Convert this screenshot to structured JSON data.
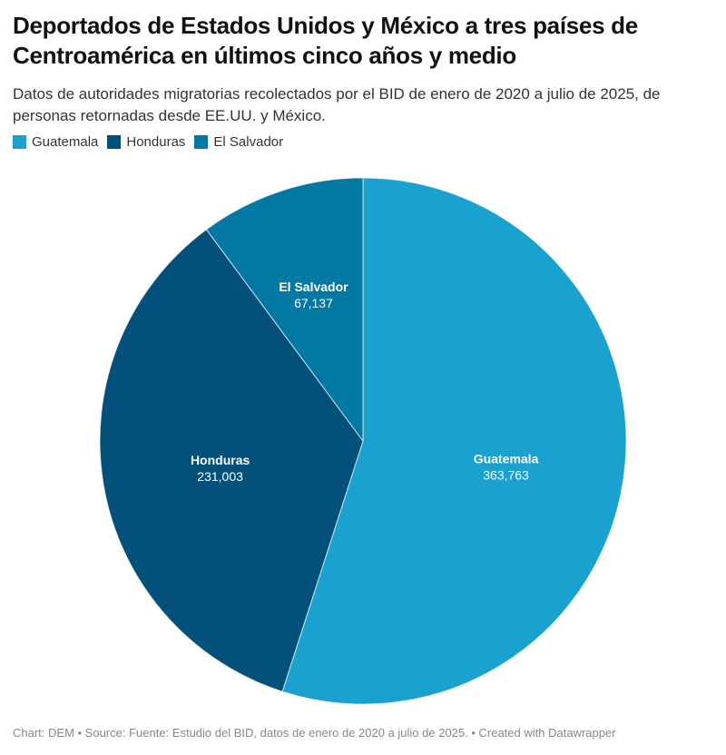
{
  "title": "Deportados de Estados Unidos y México a tres países de Centroamérica en últimos cinco años y medio",
  "subtitle": "Datos de autoridades migratorias recolectados por el BID de enero de 2020 a julio de 2025, de personas retornadas desde EE.UU. y México.",
  "footer": "Chart: DEM • Source: Fuente: Estudio del BID, datos de enero de 2020 a julio de 2025. • Created with Datawrapper",
  "chart_data": {
    "type": "pie",
    "title": "Deportados de Estados Unidos y México a tres países de Centroamérica en últimos cinco años y medio",
    "legend_position": "top-left",
    "categories": [
      "Guatemala",
      "Honduras",
      "El Salvador"
    ],
    "values": [
      363763,
      231003,
      67137
    ],
    "value_labels": [
      "363,763",
      "231,003",
      "67,137"
    ],
    "colors": [
      "#1aa1cf",
      "#03517a",
      "#0378a3"
    ]
  }
}
